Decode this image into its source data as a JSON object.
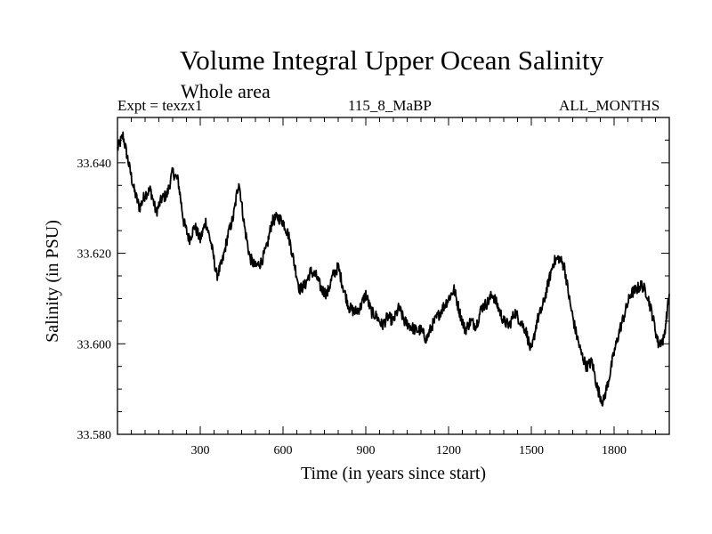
{
  "chart_data": {
    "type": "line",
    "title": "Volume Integral Upper Ocean Salinity",
    "subtitle": "Whole area",
    "header_left": "Expt = texzx1",
    "header_center": "115_8_MaBP",
    "header_right": "ALL_MONTHS",
    "xlabel": "Time (in years since start)",
    "ylabel": "Salinity (in PSU)",
    "xlim": [
      0,
      2000
    ],
    "ylim": [
      33.58,
      33.65
    ],
    "x_ticks": [
      300,
      600,
      900,
      1200,
      1500,
      1800
    ],
    "x_tick_labels": [
      "300",
      "600",
      "900",
      "1200",
      "1500",
      "1800"
    ],
    "y_ticks": [
      33.58,
      33.6,
      33.62,
      33.64
    ],
    "y_tick_labels": [
      "33.580",
      "33.600",
      "33.620",
      "33.640"
    ],
    "series": [
      {
        "name": "Salinity",
        "x": [
          0,
          20,
          40,
          60,
          80,
          100,
          120,
          140,
          160,
          180,
          200,
          220,
          240,
          260,
          280,
          300,
          320,
          340,
          360,
          380,
          400,
          420,
          440,
          460,
          480,
          500,
          520,
          540,
          560,
          580,
          600,
          620,
          640,
          660,
          680,
          700,
          720,
          740,
          760,
          780,
          800,
          820,
          840,
          860,
          880,
          900,
          920,
          940,
          960,
          980,
          1000,
          1020,
          1040,
          1060,
          1080,
          1100,
          1120,
          1140,
          1160,
          1180,
          1200,
          1220,
          1240,
          1260,
          1280,
          1300,
          1320,
          1340,
          1360,
          1380,
          1400,
          1420,
          1440,
          1460,
          1480,
          1500,
          1520,
          1540,
          1560,
          1580,
          1600,
          1620,
          1640,
          1660,
          1680,
          1700,
          1720,
          1740,
          1760,
          1780,
          1800,
          1820,
          1840,
          1860,
          1880,
          1900,
          1920,
          1940,
          1960,
          1980,
          2000
        ],
        "values": [
          33.643,
          33.646,
          33.64,
          33.634,
          33.63,
          33.633,
          33.634,
          33.629,
          33.632,
          33.633,
          33.638,
          33.636,
          33.627,
          33.623,
          33.626,
          33.623,
          33.627,
          33.622,
          33.615,
          33.618,
          33.624,
          33.628,
          33.636,
          33.626,
          33.619,
          33.617,
          33.618,
          33.621,
          33.627,
          33.628,
          33.627,
          33.624,
          33.618,
          33.612,
          33.613,
          33.616,
          33.615,
          33.612,
          33.611,
          33.615,
          33.617,
          33.612,
          33.608,
          33.607,
          33.608,
          33.611,
          33.607,
          33.606,
          33.604,
          33.606,
          33.605,
          33.608,
          33.605,
          33.604,
          33.603,
          33.603,
          33.601,
          33.604,
          33.606,
          33.608,
          33.61,
          33.612,
          33.607,
          33.603,
          33.605,
          33.604,
          33.608,
          33.609,
          33.611,
          33.608,
          33.605,
          33.604,
          33.607,
          33.605,
          33.603,
          33.598,
          33.605,
          33.608,
          33.613,
          33.618,
          33.619,
          33.617,
          33.609,
          33.603,
          33.598,
          33.595,
          33.596,
          33.59,
          33.587,
          33.592,
          33.598,
          33.603,
          33.607,
          33.611,
          33.612,
          33.613,
          33.611,
          33.606,
          33.6,
          33.601,
          33.611
        ]
      }
    ]
  }
}
